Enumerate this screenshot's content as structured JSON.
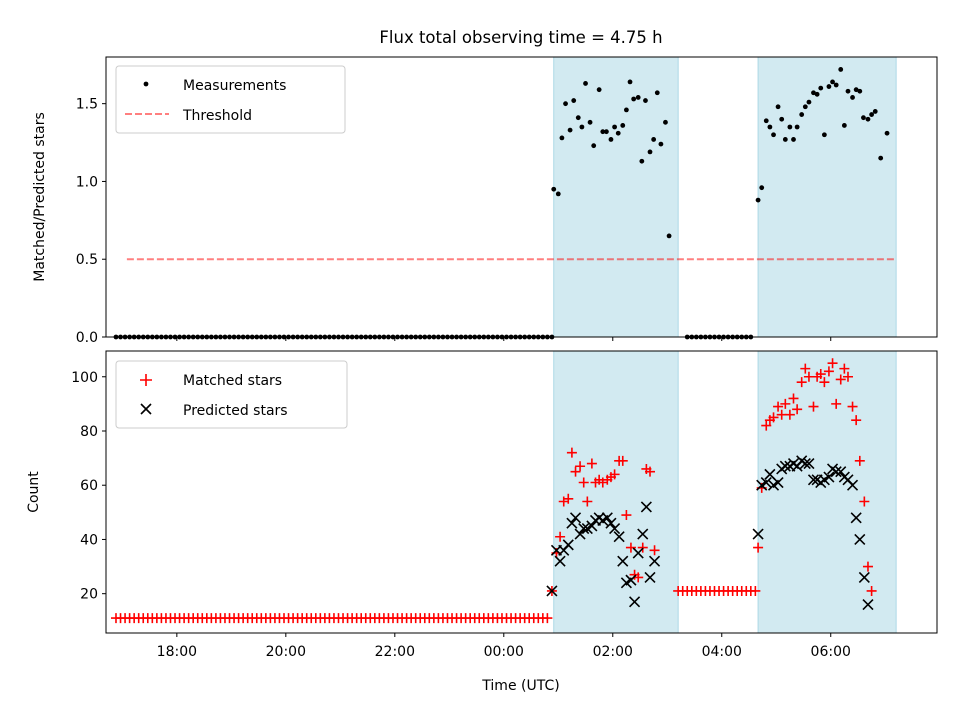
{
  "title": "Flux total observing time = 4.75 h",
  "colors": {
    "band": "#add8e6",
    "threshold": "#ff0000",
    "measure": "#000000",
    "matched": "#ff0000",
    "predicted": "#000000"
  },
  "chart_data": [
    {
      "type": "scatter",
      "ylabel": "Matched/Predicted stars",
      "ylim": [
        0,
        1.8
      ],
      "yticks": [
        "0.0",
        "0.5",
        "1.0",
        "1.5"
      ],
      "xlim_hours": [
        16.7,
        31.95
      ],
      "legend": [
        "Measurements",
        "Threshold"
      ],
      "legend_position": "upper-left",
      "shaded_intervals": [
        [
          "00:55",
          "03:12"
        ],
        [
          "04:40",
          "07:12"
        ]
      ],
      "threshold": {
        "y": 0.5,
        "x_start": "17:05",
        "x_end": "07:12",
        "style": "dashed"
      },
      "series": [
        {
          "name": "Measurements",
          "zero_run_1": {
            "start": "16:53",
            "end": "00:53",
            "interval_min": 5,
            "y": 0
          },
          "zero_run_2": {
            "start": "03:22",
            "end": "04:32",
            "interval_min": 5,
            "y": 0
          },
          "points": [
            [
              "00:55",
              0.95
            ],
            [
              "01:00",
              0.92
            ],
            [
              "01:04",
              1.28
            ],
            [
              "01:08",
              1.5
            ],
            [
              "01:13",
              1.33
            ],
            [
              "01:17",
              1.52
            ],
            [
              "01:22",
              1.41
            ],
            [
              "01:26",
              1.35
            ],
            [
              "01:30",
              1.63
            ],
            [
              "01:35",
              1.38
            ],
            [
              "01:39",
              1.23
            ],
            [
              "01:45",
              1.59
            ],
            [
              "01:49",
              1.32
            ],
            [
              "01:53",
              1.32
            ],
            [
              "01:58",
              1.27
            ],
            [
              "02:02",
              1.35
            ],
            [
              "02:06",
              1.31
            ],
            [
              "02:11",
              1.36
            ],
            [
              "02:15",
              1.46
            ],
            [
              "02:19",
              1.64
            ],
            [
              "02:23",
              1.53
            ],
            [
              "02:28",
              1.54
            ],
            [
              "02:32",
              1.13
            ],
            [
              "02:36",
              1.52
            ],
            [
              "02:41",
              1.19
            ],
            [
              "02:45",
              1.27
            ],
            [
              "02:49",
              1.57
            ],
            [
              "02:53",
              1.24
            ],
            [
              "02:58",
              1.38
            ],
            [
              "03:02",
              0.65
            ],
            [
              "04:40",
              0.88
            ],
            [
              "04:44",
              0.96
            ],
            [
              "04:49",
              1.39
            ],
            [
              "04:53",
              1.35
            ],
            [
              "04:57",
              1.3
            ],
            [
              "05:02",
              1.48
            ],
            [
              "05:06",
              1.4
            ],
            [
              "05:10",
              1.27
            ],
            [
              "05:15",
              1.35
            ],
            [
              "05:19",
              1.27
            ],
            [
              "05:23",
              1.35
            ],
            [
              "05:28",
              1.43
            ],
            [
              "05:32",
              1.48
            ],
            [
              "05:36",
              1.51
            ],
            [
              "05:41",
              1.57
            ],
            [
              "05:45",
              1.56
            ],
            [
              "05:49",
              1.6
            ],
            [
              "05:53",
              1.3
            ],
            [
              "05:58",
              1.61
            ],
            [
              "06:02",
              1.64
            ],
            [
              "06:06",
              1.62
            ],
            [
              "06:11",
              1.72
            ],
            [
              "06:15",
              1.36
            ],
            [
              "06:19",
              1.58
            ],
            [
              "06:24",
              1.54
            ],
            [
              "06:28",
              1.59
            ],
            [
              "06:32",
              1.58
            ],
            [
              "06:36",
              1.41
            ],
            [
              "06:41",
              1.4
            ],
            [
              "06:45",
              1.43
            ],
            [
              "06:49",
              1.45
            ],
            [
              "06:55",
              1.15
            ],
            [
              "07:02",
              1.31
            ]
          ]
        }
      ]
    },
    {
      "type": "scatter",
      "xlabel": "Time (UTC)",
      "ylabel": "Count",
      "ylim": [
        5.5,
        109.5
      ],
      "yticks": [
        "20",
        "40",
        "60",
        "80",
        "100"
      ],
      "xticks": [
        "18:00",
        "20:00",
        "22:00",
        "00:00",
        "02:00",
        "04:00",
        "06:00"
      ],
      "xlim_hours": [
        16.7,
        31.95
      ],
      "legend": [
        "Matched stars",
        "Predicted stars"
      ],
      "legend_position": "upper-left",
      "shaded_intervals": [
        [
          "00:55",
          "03:12"
        ],
        [
          "04:40",
          "07:12"
        ]
      ],
      "series": [
        {
          "name": "Matched stars",
          "marker": "+",
          "baseline_run_1": {
            "start": "16:53",
            "end": "00:48",
            "interval_min": 5,
            "y": 11
          },
          "baseline_run_2": {
            "start": "03:12",
            "end": "04:40",
            "interval_min": 5,
            "y": 21
          },
          "points": [
            [
              "00:53",
              21
            ],
            [
              "00:58",
              35
            ],
            [
              "01:02",
              41
            ],
            [
              "01:06",
              54
            ],
            [
              "01:11",
              55
            ],
            [
              "01:15",
              72
            ],
            [
              "01:19",
              65
            ],
            [
              "01:24",
              67
            ],
            [
              "01:28",
              61
            ],
            [
              "01:32",
              54
            ],
            [
              "01:37",
              68
            ],
            [
              "01:41",
              61
            ],
            [
              "01:45",
              62
            ],
            [
              "01:49",
              61
            ],
            [
              "01:54",
              62
            ],
            [
              "01:58",
              63
            ],
            [
              "02:02",
              64
            ],
            [
              "02:07",
              69
            ],
            [
              "02:11",
              69
            ],
            [
              "02:15",
              49
            ],
            [
              "02:20",
              37
            ],
            [
              "02:24",
              27
            ],
            [
              "02:28",
              26
            ],
            [
              "02:33",
              37
            ],
            [
              "02:37",
              66
            ],
            [
              "02:41",
              65
            ],
            [
              "02:46",
              36
            ],
            [
              "04:40",
              37
            ],
            [
              "04:44",
              59
            ],
            [
              "04:49",
              82
            ],
            [
              "04:53",
              84
            ],
            [
              "04:57",
              85
            ],
            [
              "05:02",
              89
            ],
            [
              "05:06",
              86
            ],
            [
              "05:10",
              90
            ],
            [
              "05:15",
              86
            ],
            [
              "05:19",
              92
            ],
            [
              "05:23",
              88
            ],
            [
              "05:28",
              98
            ],
            [
              "05:32",
              103
            ],
            [
              "05:36",
              100
            ],
            [
              "05:41",
              89
            ],
            [
              "05:45",
              100
            ],
            [
              "05:49",
              101
            ],
            [
              "05:53",
              98
            ],
            [
              "05:58",
              102
            ],
            [
              "06:02",
              105
            ],
            [
              "06:06",
              90
            ],
            [
              "06:11",
              99
            ],
            [
              "06:15",
              103
            ],
            [
              "06:19",
              100
            ],
            [
              "06:24",
              89
            ],
            [
              "06:28",
              84
            ],
            [
              "06:32",
              69
            ],
            [
              "06:37",
              54
            ],
            [
              "06:41",
              30
            ],
            [
              "06:45",
              21
            ]
          ]
        },
        {
          "name": "Predicted stars",
          "marker": "x",
          "points": [
            [
              "00:53",
              21
            ],
            [
              "00:58",
              36
            ],
            [
              "01:02",
              32
            ],
            [
              "01:06",
              36
            ],
            [
              "01:11",
              38
            ],
            [
              "01:15",
              46
            ],
            [
              "01:19",
              48
            ],
            [
              "01:24",
              42
            ],
            [
              "01:28",
              44
            ],
            [
              "01:32",
              44
            ],
            [
              "01:37",
              45
            ],
            [
              "01:41",
              47
            ],
            [
              "01:45",
              48
            ],
            [
              "01:49",
              47
            ],
            [
              "01:54",
              48
            ],
            [
              "01:58",
              46
            ],
            [
              "02:02",
              44
            ],
            [
              "02:07",
              41
            ],
            [
              "02:11",
              32
            ],
            [
              "02:15",
              24
            ],
            [
              "02:20",
              25
            ],
            [
              "02:24",
              17
            ],
            [
              "02:28",
              35
            ],
            [
              "02:33",
              42
            ],
            [
              "02:37",
              52
            ],
            [
              "02:41",
              26
            ],
            [
              "02:46",
              32
            ],
            [
              "04:40",
              42
            ],
            [
              "04:44",
              60
            ],
            [
              "04:49",
              61
            ],
            [
              "04:53",
              64
            ],
            [
              "04:57",
              60
            ],
            [
              "05:02",
              61
            ],
            [
              "05:06",
              66
            ],
            [
              "05:10",
              67
            ],
            [
              "05:15",
              67
            ],
            [
              "05:19",
              68
            ],
            [
              "05:23",
              67
            ],
            [
              "05:28",
              69
            ],
            [
              "05:32",
              68
            ],
            [
              "05:36",
              68
            ],
            [
              "05:41",
              62
            ],
            [
              "05:45",
              62
            ],
            [
              "05:49",
              61
            ],
            [
              "05:53",
              62
            ],
            [
              "05:58",
              63
            ],
            [
              "06:02",
              66
            ],
            [
              "06:06",
              65
            ],
            [
              "06:11",
              65
            ],
            [
              "06:15",
              63
            ],
            [
              "06:19",
              62
            ],
            [
              "06:24",
              60
            ],
            [
              "06:28",
              48
            ],
            [
              "06:32",
              40
            ],
            [
              "06:37",
              26
            ],
            [
              "06:41",
              16
            ]
          ]
        }
      ]
    }
  ]
}
